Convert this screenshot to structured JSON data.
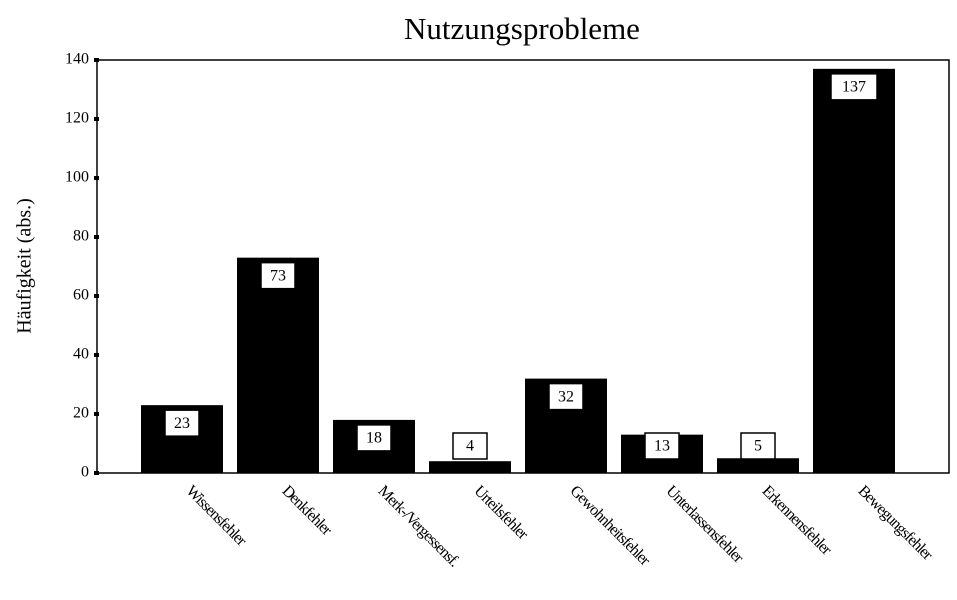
{
  "chart_data": {
    "type": "bar",
    "title": "Nutzungsprobleme",
    "y_label": "Häufigkeit (abs.)",
    "categories": [
      "Wissensfehler",
      "Denkfehler",
      "Merk-/Vergessensf.",
      "Urteilsfehler",
      "Gewohnheitsfehler",
      "Unterlassensfehler",
      "Erkennensfehler",
      "Bewegungsfehler"
    ],
    "values": [
      23,
      73,
      18,
      4,
      32,
      13,
      5,
      137
    ],
    "color": "#000000",
    "ylim": [
      0,
      140
    ],
    "yticks": [
      0,
      20,
      40,
      60,
      80,
      100,
      120,
      140
    ],
    "grid": false
  }
}
